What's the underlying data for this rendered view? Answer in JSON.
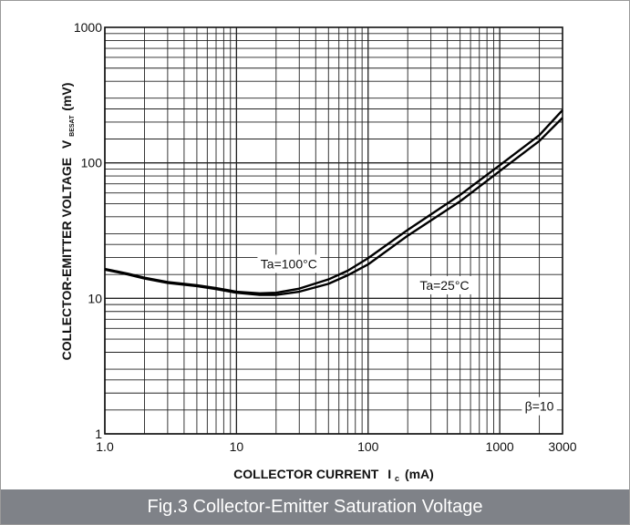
{
  "chart_data": {
    "type": "line",
    "title": "",
    "xlabel": "COLLECTOR CURRENT",
    "xlabel_symbol": "I",
    "xlabel_sub": "c",
    "xlabel_unit": "(mA)",
    "ylabel": "COLLECTOR-EMITTER VOLTAGE",
    "ylabel_symbol": "V",
    "ylabel_sub": "BESAT",
    "ylabel_unit": "(mV)",
    "x_scale": "log",
    "y_scale": "log",
    "xlim": [
      1,
      3000
    ],
    "ylim": [
      1,
      1000
    ],
    "grid": true,
    "x_ticks": [
      {
        "value": 1,
        "label": "1.0"
      },
      {
        "value": 10,
        "label": "10"
      },
      {
        "value": 100,
        "label": "100"
      },
      {
        "value": 1000,
        "label": "1000"
      },
      {
        "value": 3000,
        "label": "3000"
      }
    ],
    "y_ticks": [
      {
        "value": 1,
        "label": "1"
      },
      {
        "value": 10,
        "label": "10"
      },
      {
        "value": 100,
        "label": "100"
      },
      {
        "value": 1000,
        "label": "1000"
      }
    ],
    "series": [
      {
        "name": "Ta=100°C",
        "x": [
          1,
          1.5,
          2,
          3,
          5,
          7,
          10,
          15,
          20,
          30,
          50,
          70,
          100,
          200,
          500,
          1000,
          2000,
          3000
        ],
        "y": [
          16.5,
          15.2,
          14.2,
          13.2,
          12.5,
          11.9,
          11.2,
          10.9,
          11.0,
          11.8,
          13.8,
          16.0,
          19.8,
          32,
          58,
          96,
          160,
          245
        ]
      },
      {
        "name": "Ta=25°C",
        "x": [
          1,
          1.5,
          2,
          3,
          5,
          7,
          10,
          15,
          20,
          30,
          50,
          70,
          100,
          200,
          500,
          1000,
          2000,
          3000
        ],
        "y": [
          16.3,
          15.0,
          14.0,
          13.0,
          12.3,
          11.7,
          11.0,
          10.6,
          10.6,
          11.2,
          12.8,
          14.8,
          17.8,
          29,
          52,
          87,
          145,
          215
        ]
      }
    ],
    "annotations": [
      {
        "text": "Ta=100°C",
        "x": 25,
        "y": 18
      },
      {
        "text": "Ta=25°C",
        "x": 380,
        "y": 12.5
      },
      {
        "text": "β=10",
        "x": 2000,
        "y": 1.6
      }
    ],
    "caption": "Fig.3 Collector-Emitter Saturation Voltage"
  }
}
